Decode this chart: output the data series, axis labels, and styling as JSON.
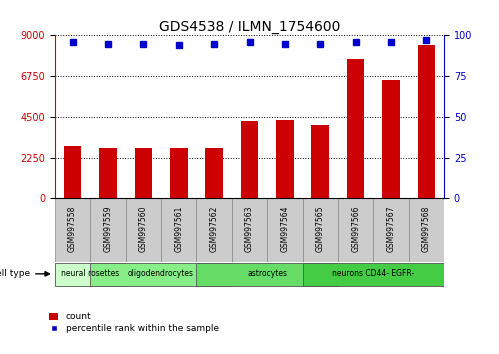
{
  "title": "GDS4538 / ILMN_1754600",
  "samples": [
    "GSM997558",
    "GSM997559",
    "GSM997560",
    "GSM997561",
    "GSM997562",
    "GSM997563",
    "GSM997564",
    "GSM997565",
    "GSM997566",
    "GSM997567",
    "GSM997568"
  ],
  "counts": [
    2900,
    2800,
    2780,
    2780,
    2780,
    4250,
    4350,
    4050,
    7700,
    6550,
    8450
  ],
  "percentile_ranks": [
    96,
    95,
    95,
    94,
    95,
    96,
    95,
    95,
    96,
    96,
    97
  ],
  "bar_color": "#cc0000",
  "dot_color": "#0000cc",
  "ylim_left": [
    0,
    9000
  ],
  "ylim_right": [
    0,
    100
  ],
  "yticks_left": [
    0,
    2250,
    4500,
    6750,
    9000
  ],
  "yticks_right": [
    0,
    25,
    50,
    75,
    100
  ],
  "cell_types": [
    {
      "label": "neural rosettes",
      "start": 0,
      "end": 1,
      "color": "#ccffcc"
    },
    {
      "label": "oligodendrocytes",
      "start": 1,
      "end": 4,
      "color": "#88ee88"
    },
    {
      "label": "astrocytes",
      "start": 4,
      "end": 7,
      "color": "#66dd66"
    },
    {
      "label": "neurons CD44- EGFR-",
      "start": 7,
      "end": 10,
      "color": "#44cc44"
    }
  ],
  "cell_type_label": "cell type",
  "legend_count_label": "count",
  "legend_pct_label": "percentile rank within the sample",
  "title_fontsize": 10,
  "tick_label_fontsize": 7,
  "background_color": "#ffffff",
  "sample_box_color": "#cccccc",
  "bar_width": 0.5
}
